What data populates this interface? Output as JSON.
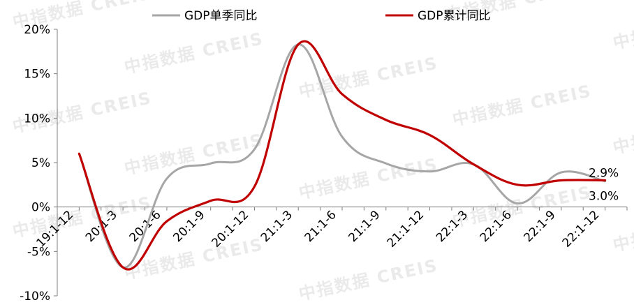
{
  "chart_data": {
    "type": "line",
    "categories": [
      "19:1-12",
      "20:1-3",
      "20:1-6",
      "20:1-9",
      "20:1-12",
      "21:1-3",
      "21:1-6",
      "21:1-9",
      "21:1-12",
      "22:1-3",
      "22:1-6",
      "22:1-9",
      "22:1-12"
    ],
    "x": [
      "2019Q4",
      "2020Q1",
      "2020Q2",
      "2020Q3",
      "2020Q4",
      "2021Q1",
      "2021Q2",
      "2021Q3",
      "2021Q4",
      "2022Q1",
      "2022Q2",
      "2022Q3",
      "2022Q4"
    ],
    "series": [
      {
        "name": "GDP单季同比",
        "color": "#a6a6a6",
        "values": [
          6.0,
          -6.8,
          3.2,
          4.9,
          6.5,
          18.3,
          7.9,
          4.9,
          4.0,
          4.8,
          0.4,
          3.9,
          2.9
        ]
      },
      {
        "name": "GDP累计同比",
        "color": "#c00000",
        "values": [
          6.0,
          -6.8,
          -1.6,
          0.7,
          2.3,
          18.3,
          12.7,
          9.8,
          8.1,
          4.8,
          2.5,
          3.0,
          3.0
        ]
      }
    ],
    "ylim": [
      -10,
      20
    ],
    "yticks": [
      -10,
      -5,
      0,
      5,
      10,
      15,
      20
    ],
    "ytick_labels": [
      "-10%",
      "-5%",
      "0%",
      "5%",
      "10%",
      "15%",
      "20%"
    ],
    "tick_label_slots": [
      0.5,
      2.5,
      4.5,
      6.5,
      8.5,
      10.5,
      12.5,
      14.5,
      16.5,
      18.5,
      20.5,
      22.5,
      24.5
    ],
    "data_labels": [
      {
        "series": "GDP单季同比",
        "text": "2.9%"
      },
      {
        "series": "GDP累计同比",
        "text": "3.0%"
      }
    ],
    "legend_position": "top",
    "grid": false,
    "xlabel": "",
    "ylabel": ""
  },
  "watermark": {
    "text": "中指数据 CREIS"
  }
}
